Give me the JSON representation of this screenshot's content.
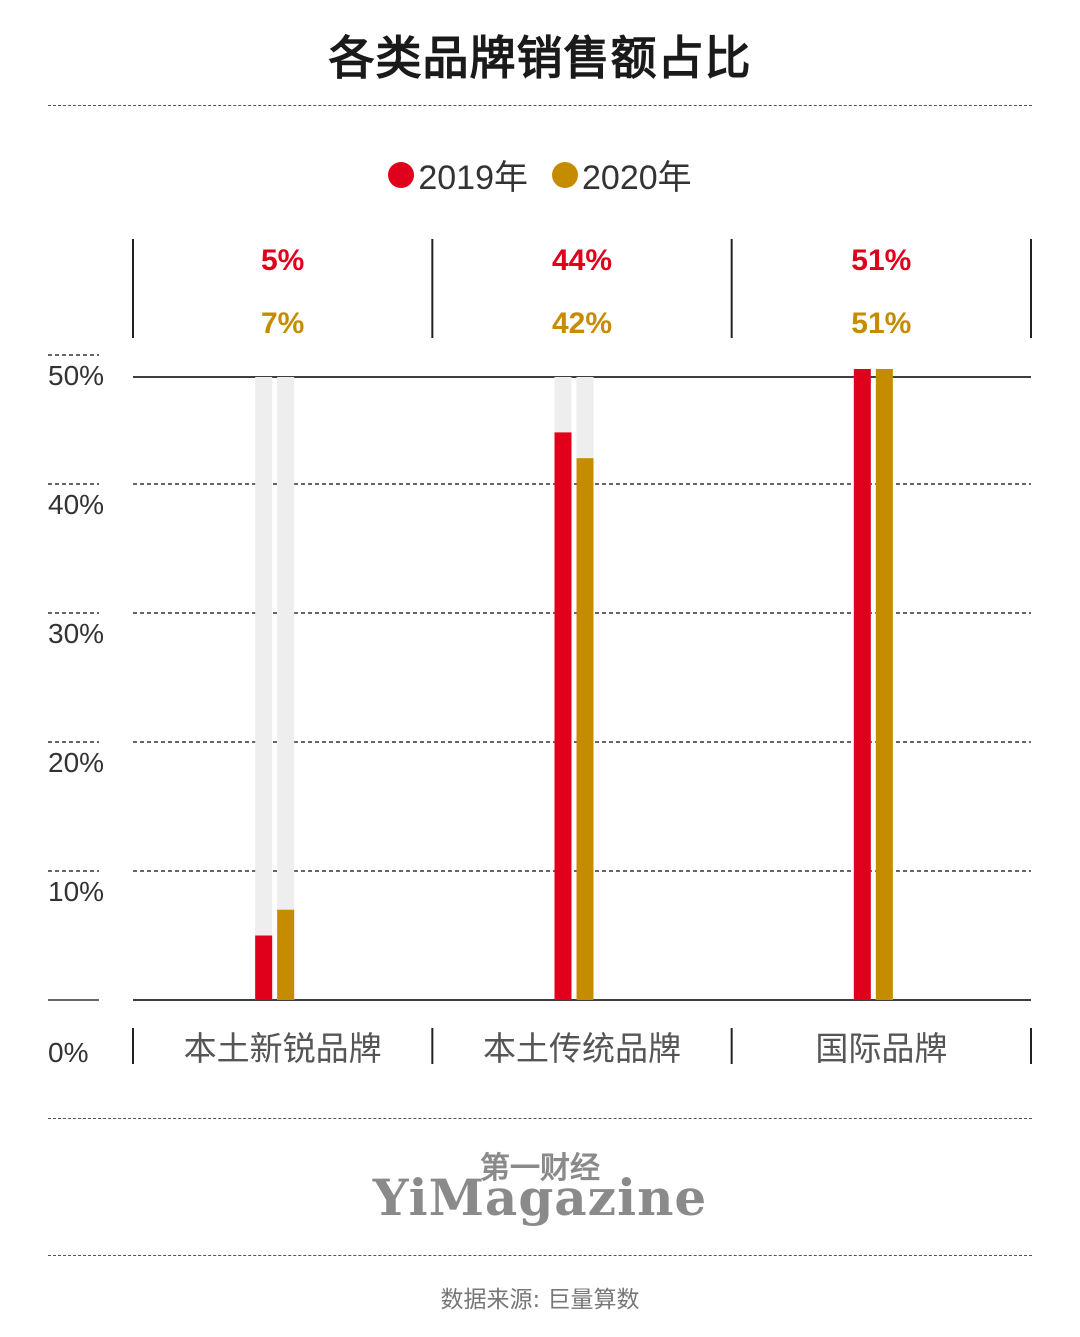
{
  "title": "各类品牌销售额占比",
  "legend": [
    {
      "label": "2019年",
      "color": "#e0001b"
    },
    {
      "label": "2020年",
      "color": "#c68c00"
    }
  ],
  "chart_data": {
    "type": "bar",
    "title": "各类品牌销售额占比",
    "categories": [
      "本土新锐品牌",
      "本土传统品牌",
      "国际品牌"
    ],
    "series": [
      {
        "name": "2019年",
        "values": [
          5,
          44,
          51
        ],
        "labels": [
          "5%",
          "44%",
          "51%"
        ],
        "color": "#e0001b"
      },
      {
        "name": "2020年",
        "values": [
          7,
          42,
          51
        ],
        "labels": [
          "7%",
          "42%",
          "51%"
        ],
        "color": "#c68c00"
      }
    ],
    "yticks": [
      "0%",
      "10%",
      "20%",
      "30%",
      "40%",
      "50%"
    ],
    "ylim": [
      0,
      50
    ],
    "xlabel": "",
    "ylabel": "",
    "grid": true,
    "legend_position": "top-center"
  },
  "logo": {
    "cn": "第一财经",
    "en": "YiMagazine"
  },
  "source": "数据来源: 巨量算数"
}
